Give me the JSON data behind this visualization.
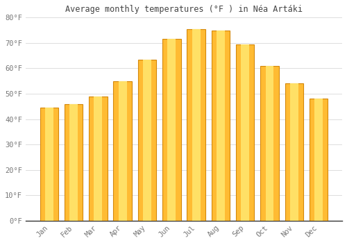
{
  "title": "Average monthly temperatures (°F ) in Néa Artáki",
  "months": [
    "Jan",
    "Feb",
    "Mar",
    "Apr",
    "May",
    "Jun",
    "Jul",
    "Aug",
    "Sep",
    "Oct",
    "Nov",
    "Dec"
  ],
  "values": [
    44.5,
    46.0,
    49.0,
    55.0,
    63.5,
    71.5,
    75.5,
    75.0,
    69.5,
    61.0,
    54.0,
    48.0
  ],
  "bar_color": "#FFBB33",
  "bar_edge_color": "#D4870A",
  "background_color": "#FFFFFF",
  "grid_color": "#DDDDDD",
  "text_color": "#777777",
  "title_color": "#444444",
  "ylim": [
    0,
    80
  ],
  "yticks": [
    0,
    10,
    20,
    30,
    40,
    50,
    60,
    70,
    80
  ],
  "ytick_labels": [
    "0°F",
    "10°F",
    "20°F",
    "30°F",
    "40°F",
    "50°F",
    "60°F",
    "70°F",
    "80°F"
  ]
}
